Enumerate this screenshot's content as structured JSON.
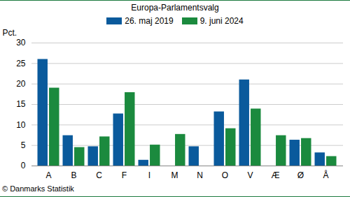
{
  "chart_data": {
    "type": "bar",
    "title": "Europa-Parlamentsvalg",
    "y_label": "Pct.",
    "caption": "© Danmarks Statistik",
    "categories": [
      "A",
      "B",
      "C",
      "F",
      "I",
      "M",
      "N",
      "O",
      "V",
      "Æ",
      "Ø",
      "Å"
    ],
    "series": [
      {
        "name": "26. maj 2019",
        "color": "#0a5a9c",
        "values": [
          26.0,
          7.4,
          4.7,
          12.7,
          1.4,
          null,
          4.7,
          13.2,
          21.0,
          null,
          6.3,
          3.2
        ]
      },
      {
        "name": "9. juni 2024",
        "color": "#1b8a3e",
        "values": [
          19.0,
          4.5,
          7.1,
          17.9,
          5.1,
          7.7,
          null,
          9.1,
          13.9,
          7.4,
          6.7,
          2.3
        ]
      }
    ],
    "ylim": [
      0,
      30
    ],
    "yticks": [
      0,
      5,
      10,
      15,
      20,
      25,
      30
    ],
    "grid": true,
    "legend": "top"
  }
}
